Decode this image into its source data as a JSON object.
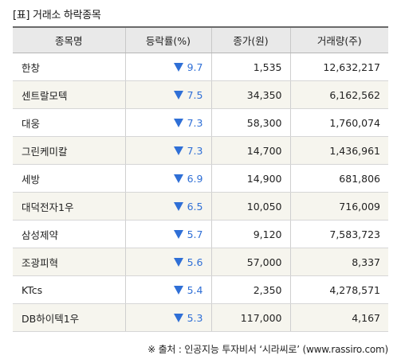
{
  "title": "[표] 거래소 하락종목",
  "headers": [
    "종목명",
    "등락률(%)",
    "종가(원)",
    "거래량(주)"
  ],
  "rows": [
    {
      "name": "한창",
      "rate": "9.7",
      "close": "1,535",
      "volume": "12,632,217"
    },
    {
      "name": "센트랄모텍",
      "rate": "7.5",
      "close": "34,350",
      "volume": "6,162,562"
    },
    {
      "name": "대웅",
      "rate": "7.3",
      "close": "58,300",
      "volume": "1,760,074"
    },
    {
      "name": "그린케미칼",
      "rate": "7.3",
      "close": "14,700",
      "volume": "1,436,961"
    },
    {
      "name": "세방",
      "rate": "6.9",
      "close": "14,900",
      "volume": "681,806"
    },
    {
      "name": "대덕전자1우",
      "rate": "6.5",
      "close": "10,050",
      "volume": "716,009"
    },
    {
      "name": "삼성제약",
      "rate": "5.7",
      "close": "9,120",
      "volume": "7,583,723"
    },
    {
      "name": "조광피혁",
      "rate": "5.6",
      "close": "57,000",
      "volume": "8,337"
    },
    {
      "name": "KTcs",
      "rate": "5.4",
      "close": "2,350",
      "volume": "4,278,571"
    },
    {
      "name": "DB하이텍1우",
      "rate": "5.3",
      "close": "117,000",
      "volume": "4,167"
    }
  ],
  "down_icon": "down-triangle-icon",
  "colors": {
    "down": "#2f6fd6",
    "header_bg": "#e9e9e9",
    "stripe_bg": "#f6f5ee"
  },
  "source": "※ 출처 : 인공지능 투자비서 ‘시라씨로’ (www.rassiro.com)"
}
